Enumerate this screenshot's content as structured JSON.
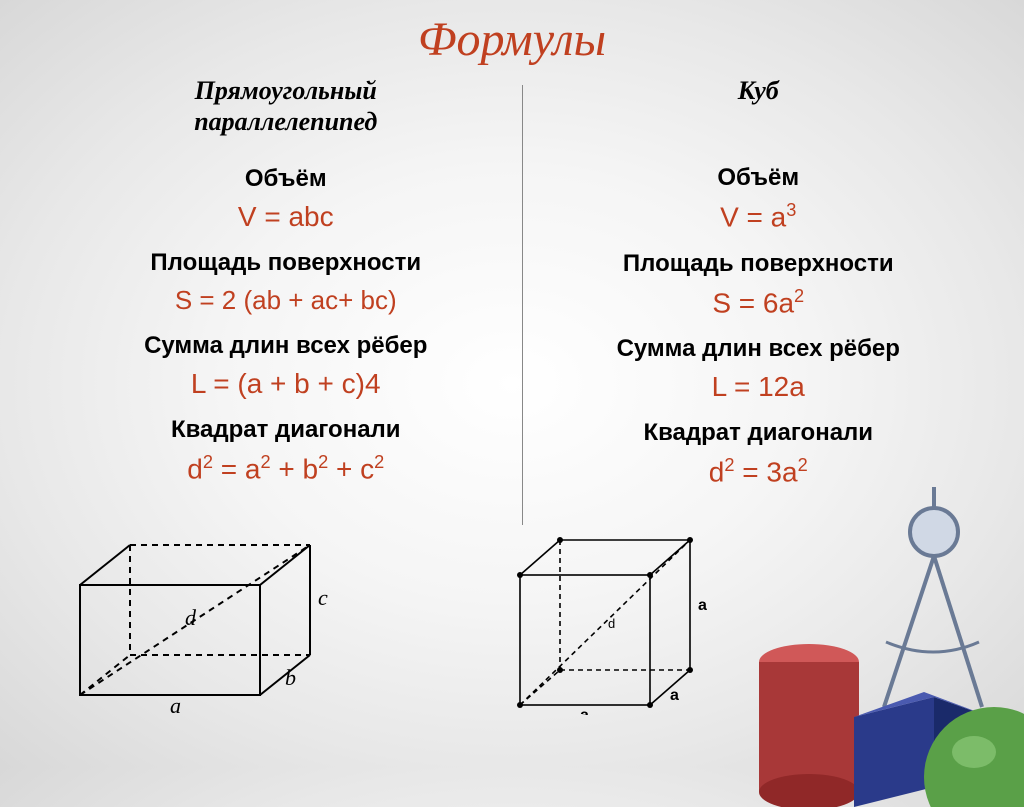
{
  "title": "Формулы",
  "left": {
    "name_l1": "Прямоугольный",
    "name_l2": "параллелепипед",
    "volume_label": "Объём",
    "volume_formula": "V = abc",
    "surface_label": "Площадь поверхности",
    "surface_formula": "S = 2 (ab + ac+ bc)",
    "edges_label": "Сумма длин всех рёбер",
    "edges_formula": "L = (a + b + c)4",
    "diag_label": "Квадрат диагонали",
    "diag_formula_html": "d<sup>2</sup> = a<sup>2</sup> + b<sup>2</sup> + c<sup>2</sup>"
  },
  "right": {
    "name_l1": "Куб",
    "volume_label": "Объём",
    "volume_formula_html": "V = a<sup>3</sup>",
    "surface_label": "Площадь поверхности",
    "surface_formula_html": "S = 6a<sup>2</sup>",
    "edges_label": "Сумма длин всех рёбер",
    "edges_formula": "L = 12a",
    "diag_label": "Квадрат диагонали",
    "diag_formula_html": "d<sup>2</sup> = 3a<sup>2</sup>"
  },
  "diagram": {
    "box_labels": {
      "a": "a",
      "b": "b",
      "c": "c",
      "d": "d"
    },
    "cube_labels": {
      "a": "a",
      "d": "d"
    }
  },
  "colors": {
    "title": "#c04020",
    "formula": "#c04020",
    "text": "#000000",
    "cylinder": "#a83838",
    "cube3d": "#2a3a8a",
    "sphere": "#5aa048",
    "compass": "#7a8aa0"
  }
}
